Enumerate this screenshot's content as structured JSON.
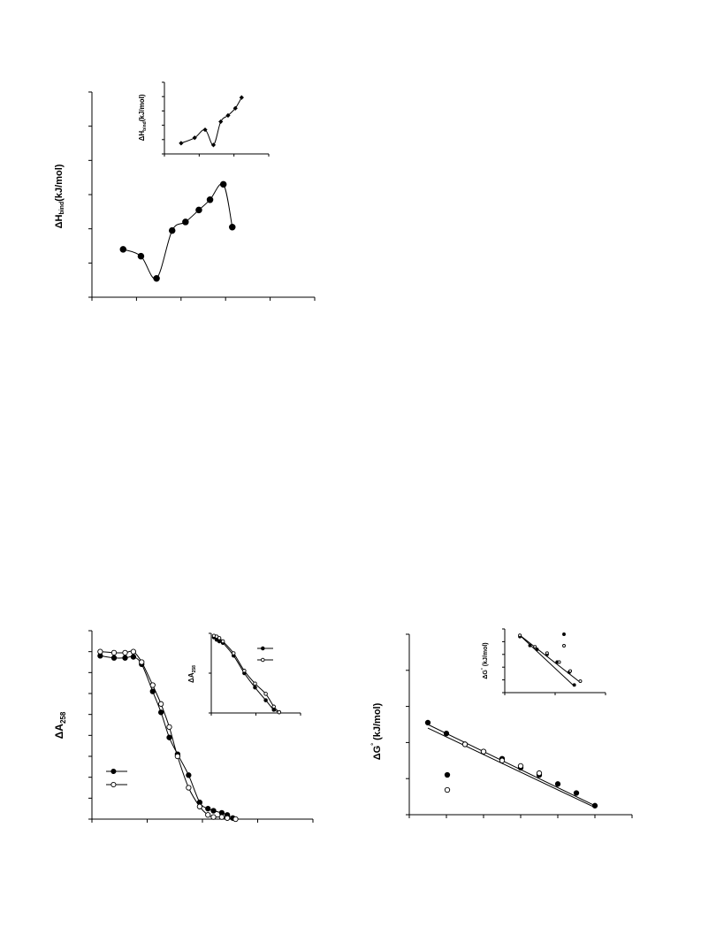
{
  "chart_data": [
    {
      "type": "line",
      "ylabel_prefix": "ΔH",
      "ylabel_sub": "bind",
      "ylabel_suffix": "(kJ/mol)",
      "x_ticks": 5,
      "y_ticks": 6,
      "xlim": [
        0,
        10
      ],
      "ylim": [
        0,
        6
      ],
      "series": [
        {
          "marker": "filled-circle",
          "x": [
            1.4,
            2.2,
            2.9,
            3.6,
            4.2,
            4.8,
            5.3,
            5.9,
            6.3
          ],
          "y": [
            1.4,
            1.2,
            0.55,
            1.95,
            2.2,
            2.55,
            2.85,
            3.3,
            2.05
          ]
        }
      ]
    },
    {
      "type": "line",
      "inset": true,
      "ylabel_prefix": "ΔH",
      "ylabel_sub": "bind",
      "ylabel_suffix": "(kJ/mol)",
      "x_ticks": 3,
      "y_ticks": 5,
      "xlim": [
        0,
        10
      ],
      "ylim": [
        0,
        8
      ],
      "series": [
        {
          "marker": "filled-diamond",
          "x": [
            1.6,
            2.9,
            3.9,
            4.7,
            5.4,
            6.1,
            6.8,
            7.4
          ],
          "y": [
            1.2,
            1.8,
            2.7,
            1.0,
            3.6,
            4.3,
            5.1,
            6.3
          ]
        }
      ]
    },
    {
      "type": "line",
      "ylabel_prefix": "ΔA",
      "ylabel_sub": "258",
      "x_ticks": 4,
      "y_ticks": 9,
      "xlim": [
        0,
        8
      ],
      "ylim": [
        0,
        9
      ],
      "series": [
        {
          "marker": "filled-circle",
          "x": [
            0.3,
            0.8,
            1.2,
            1.5,
            1.8,
            2.2,
            2.5,
            2.8,
            3.1,
            3.5,
            3.9,
            4.2,
            4.4,
            4.7,
            4.9,
            5.1
          ],
          "y": [
            7.8,
            7.7,
            7.7,
            7.75,
            7.4,
            6.1,
            5.1,
            3.9,
            3.1,
            2.1,
            0.8,
            0.5,
            0.4,
            0.3,
            0.2,
            0.05
          ]
        },
        {
          "marker": "open-circle",
          "x": [
            0.3,
            0.8,
            1.2,
            1.5,
            1.8,
            2.2,
            2.5,
            2.8,
            3.1,
            3.5,
            3.9,
            4.2,
            4.4,
            4.7,
            4.9,
            5.2
          ],
          "y": [
            8.0,
            7.95,
            7.95,
            8.0,
            7.5,
            6.4,
            5.5,
            4.4,
            3.0,
            1.5,
            0.6,
            0.2,
            0.1,
            0.1,
            0.05,
            0.0
          ]
        }
      ],
      "legend": [
        "filled-circle",
        "open-circle"
      ]
    },
    {
      "type": "line",
      "inset": true,
      "ylabel_prefix": "ΔA",
      "ylabel_sub": "258",
      "x_ticks": 2,
      "y_ticks": 2,
      "xlim": [
        0,
        10
      ],
      "ylim": [
        0,
        10
      ],
      "series": [
        {
          "marker": "filled-circle",
          "x": [
            0.3,
            0.6,
            0.9,
            1.3,
            2.5,
            3.7,
            4.9,
            6.1,
            7.0,
            7.6
          ],
          "y": [
            9.5,
            9.2,
            9.0,
            8.8,
            7.2,
            5.0,
            3.2,
            1.6,
            0.4,
            0.1
          ]
        },
        {
          "marker": "open-circle",
          "x": [
            0.3,
            0.6,
            0.9,
            1.3,
            2.5,
            3.7,
            4.9,
            6.1,
            7.0,
            7.6
          ],
          "y": [
            9.7,
            9.6,
            9.4,
            9.0,
            7.5,
            5.3,
            3.7,
            2.4,
            0.8,
            0.1
          ]
        }
      ],
      "legend": [
        "filled-circle",
        "open-circle"
      ]
    },
    {
      "type": "scatter",
      "ylabel_prefix": "ΔG",
      "ylabel_suffix": " (kJ/mol)",
      "x_ticks": 6,
      "y_ticks": 5,
      "xlim": [
        0,
        12
      ],
      "ylim": [
        0,
        5
      ],
      "series": [
        {
          "marker": "filled-circle",
          "x": [
            1.0,
            2.0,
            3.0,
            4.0,
            5.0,
            6.0,
            7.0,
            8.0,
            9.0,
            10.0
          ],
          "y": [
            2.55,
            2.25,
            1.95,
            1.75,
            1.55,
            1.3,
            1.1,
            0.85,
            0.6,
            0.25
          ],
          "fit": [
            [
              1.0,
              2.5
            ],
            [
              10.0,
              0.25
            ]
          ]
        },
        {
          "marker": "open-circle",
          "x": [
            3.0,
            4.0,
            5.0,
            6.0,
            7.0
          ],
          "y": [
            1.95,
            1.75,
            1.5,
            1.35,
            1.15
          ],
          "fit": [
            [
              1.0,
              2.4
            ],
            [
              10.0,
              0.2
            ]
          ]
        }
      ],
      "legend": [
        "filled-circle",
        "open-circle"
      ]
    },
    {
      "type": "scatter",
      "inset": true,
      "ylabel_prefix": "ΔG",
      "ylabel_suffix": " (kJ/mol)",
      "x_ticks": 2,
      "y_ticks": 5,
      "xlim": [
        0,
        10
      ],
      "ylim": [
        0,
        5
      ],
      "series": [
        {
          "marker": "filled-circle",
          "x": [
            1.5,
            2.5,
            3.2,
            4.2,
            5.2,
            6.4,
            6.9
          ],
          "y": [
            4.4,
            3.7,
            3.4,
            3.0,
            2.4,
            1.6,
            0.6
          ],
          "fit": [
            [
              1.5,
              4.5
            ],
            [
              6.9,
              0.5
            ]
          ]
        },
        {
          "marker": "open-circle",
          "x": [
            1.5,
            3.0,
            4.2,
            5.4,
            6.5,
            7.5
          ],
          "y": [
            4.5,
            3.6,
            3.1,
            2.4,
            1.7,
            0.9
          ],
          "fit": [
            [
              1.5,
              4.5
            ],
            [
              7.5,
              0.8
            ]
          ]
        }
      ],
      "legend": [
        "filled-circle",
        "open-circle"
      ]
    }
  ]
}
